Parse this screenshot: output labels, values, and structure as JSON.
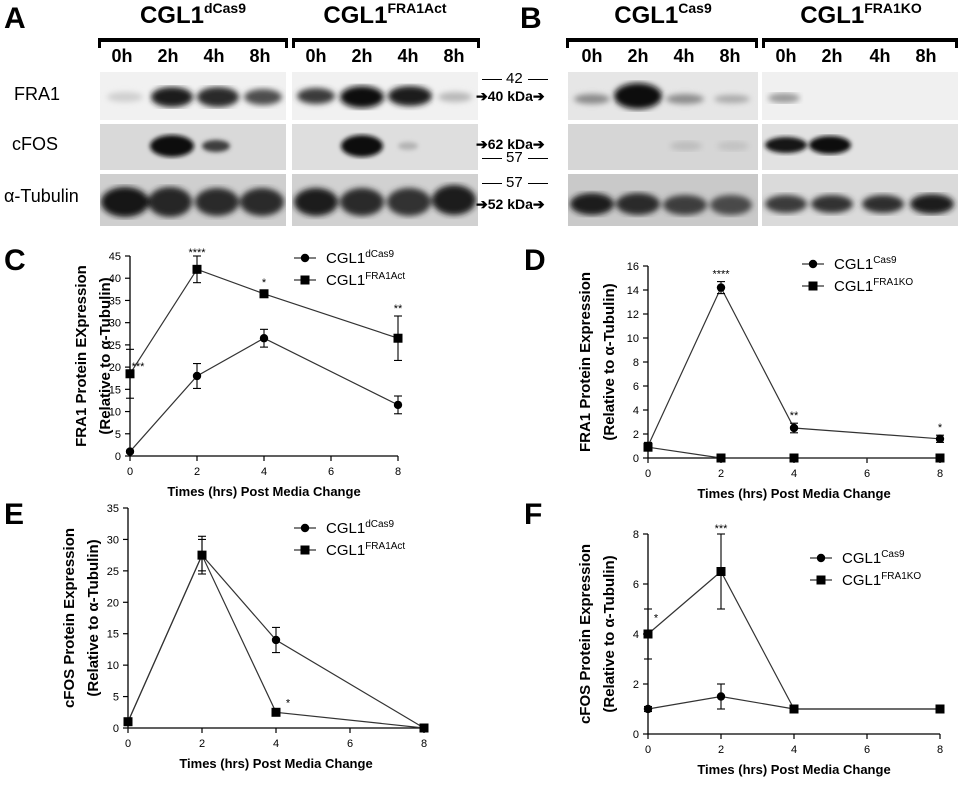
{
  "panels": {
    "A": "A",
    "B": "B",
    "C": "C",
    "D": "D",
    "E": "E",
    "F": "F"
  },
  "blotA": {
    "groups": [
      {
        "base": "CGL1",
        "sup": "dCas9",
        "times": [
          "0h",
          "2h",
          "4h",
          "8h"
        ]
      },
      {
        "base": "CGL1",
        "sup": "FRA1Act",
        "times": [
          "0h",
          "2h",
          "4h",
          "8h"
        ]
      }
    ],
    "rows": [
      "FRA1",
      "cFOS",
      "α-Tubulin"
    ]
  },
  "blotB": {
    "groups": [
      {
        "base": "CGL1",
        "sup": "Cas9",
        "times": [
          "0h",
          "2h",
          "4h",
          "8h"
        ]
      },
      {
        "base": "CGL1",
        "sup": "FRA1KO",
        "times": [
          "0h",
          "2h",
          "4h",
          "8h"
        ]
      }
    ]
  },
  "markers": {
    "m42": "42",
    "fra1_kda": "40 kDa",
    "cfos_kda": "62 kDa",
    "m57a": "57",
    "m57b": "57",
    "tub_kda": "52 kDa"
  },
  "chart_data": [
    {
      "panel": "C",
      "type": "line",
      "xlabel": "Times (hrs) Post Media Change",
      "ylabel": [
        "FRA1 Protein EXpression",
        "(Relative to α-Tubulin)"
      ],
      "xlim": [
        0,
        8
      ],
      "ylim": [
        0,
        45
      ],
      "xticks": [
        0,
        2,
        4,
        6,
        8
      ],
      "yticks": [
        0,
        5,
        10,
        15,
        20,
        25,
        30,
        35,
        40,
        45
      ],
      "x": [
        0,
        2,
        4,
        8
      ],
      "series": [
        {
          "base": "CGL1",
          "sup": "dCas9",
          "marker": "circle",
          "values": [
            1,
            18,
            26.5,
            11.5
          ],
          "err": [
            0.3,
            2.8,
            2,
            2
          ]
        },
        {
          "base": "CGL1",
          "sup": "FRA1Act",
          "marker": "square",
          "values": [
            18.5,
            42,
            36.5,
            26.5
          ],
          "err": [
            5.5,
            3,
            0.8,
            5
          ]
        }
      ],
      "annotations": [
        {
          "x": 0,
          "y": 18.5,
          "text": "***",
          "dx": 8,
          "dy": -4
        },
        {
          "x": 2,
          "y": 45,
          "text": "****",
          "dx": 0,
          "dy": 0
        },
        {
          "x": 4,
          "y": 37.3,
          "text": "*",
          "dx": 0,
          "dy": -4
        },
        {
          "x": 8,
          "y": 31.5,
          "text": "**",
          "dx": 0,
          "dy": -4
        }
      ]
    },
    {
      "panel": "D",
      "type": "line",
      "xlabel": "Times (hrs) Post Media Change",
      "ylabel": [
        "FRA1 Protein Expression",
        "(Relative to α-Tubulin)"
      ],
      "xlim": [
        0,
        8
      ],
      "ylim": [
        0,
        16
      ],
      "xticks": [
        0,
        2,
        4,
        6,
        8
      ],
      "yticks": [
        0,
        2,
        4,
        6,
        8,
        10,
        12,
        14,
        16
      ],
      "x": [
        0,
        2,
        4,
        8
      ],
      "series": [
        {
          "base": "CGL1",
          "sup": "Cas9",
          "marker": "circle",
          "values": [
            1,
            14.2,
            2.5,
            1.6
          ],
          "err": [
            0.3,
            0.5,
            0.4,
            0.3
          ]
        },
        {
          "base": "CGL1",
          "sup": "FRA1KO",
          "marker": "square",
          "values": [
            0.9,
            0,
            0,
            0
          ],
          "err": [
            0,
            0,
            0,
            0
          ]
        }
      ],
      "annotations": [
        {
          "x": 2,
          "y": 14.7,
          "text": "****",
          "dx": 0,
          "dy": -4
        },
        {
          "x": 4,
          "y": 2.9,
          "text": "**",
          "dx": 0,
          "dy": -4
        },
        {
          "x": 8,
          "y": 1.9,
          "text": "*",
          "dx": 0,
          "dy": -4
        }
      ]
    },
    {
      "panel": "E",
      "type": "line",
      "xlabel": "Times (hrs) Post Media Change",
      "ylabel": [
        "cFOS Protein Expression",
        "(Relative to α-Tubulin)"
      ],
      "xlim": [
        0,
        8
      ],
      "ylim": [
        0,
        35
      ],
      "xticks": [
        0,
        2,
        4,
        6,
        8
      ],
      "yticks": [
        0,
        5,
        10,
        15,
        20,
        25,
        30,
        35
      ],
      "x": [
        0,
        2,
        4,
        8
      ],
      "series": [
        {
          "base": "CGL1",
          "sup": "dCas9",
          "marker": "circle",
          "values": [
            1,
            27.5,
            14,
            0
          ],
          "err": [
            0.2,
            3,
            2,
            0
          ]
        },
        {
          "base": "CGL1",
          "sup": "FRA1Act",
          "marker": "square",
          "values": [
            1,
            27.5,
            2.5,
            0
          ],
          "err": [
            0.2,
            2.5,
            0.3,
            0
          ]
        }
      ],
      "annotations": [
        {
          "x": 4,
          "y": 2.8,
          "text": "*",
          "dx": 12,
          "dy": -4
        }
      ]
    },
    {
      "panel": "F",
      "type": "line",
      "xlabel": "Times (hrs) Post Media Change",
      "ylabel": [
        "cFOS Protein Expression",
        "(Relative to α-Tubulin)"
      ],
      "xlim": [
        0,
        8
      ],
      "ylim": [
        0,
        8
      ],
      "xticks": [
        0,
        2,
        4,
        6,
        8
      ],
      "yticks": [
        0,
        2,
        4,
        6,
        8
      ],
      "x": [
        0,
        2,
        4,
        8
      ],
      "series": [
        {
          "base": "CGL1",
          "sup": "Cas9",
          "marker": "circle",
          "values": [
            1,
            1.5,
            1,
            1
          ],
          "err": [
            0.1,
            0.5,
            0.1,
            0.1
          ]
        },
        {
          "base": "CGL1",
          "sup": "FRA1KO",
          "marker": "square",
          "values": [
            4,
            6.5,
            1,
            1
          ],
          "err": [
            1,
            1.5,
            0.1,
            0.1
          ]
        }
      ],
      "annotations": [
        {
          "x": 0,
          "y": 4.5,
          "text": "*",
          "dx": 8,
          "dy": 0
        },
        {
          "x": 2,
          "y": 8,
          "text": "***",
          "dx": 0,
          "dy": -2
        }
      ]
    }
  ]
}
